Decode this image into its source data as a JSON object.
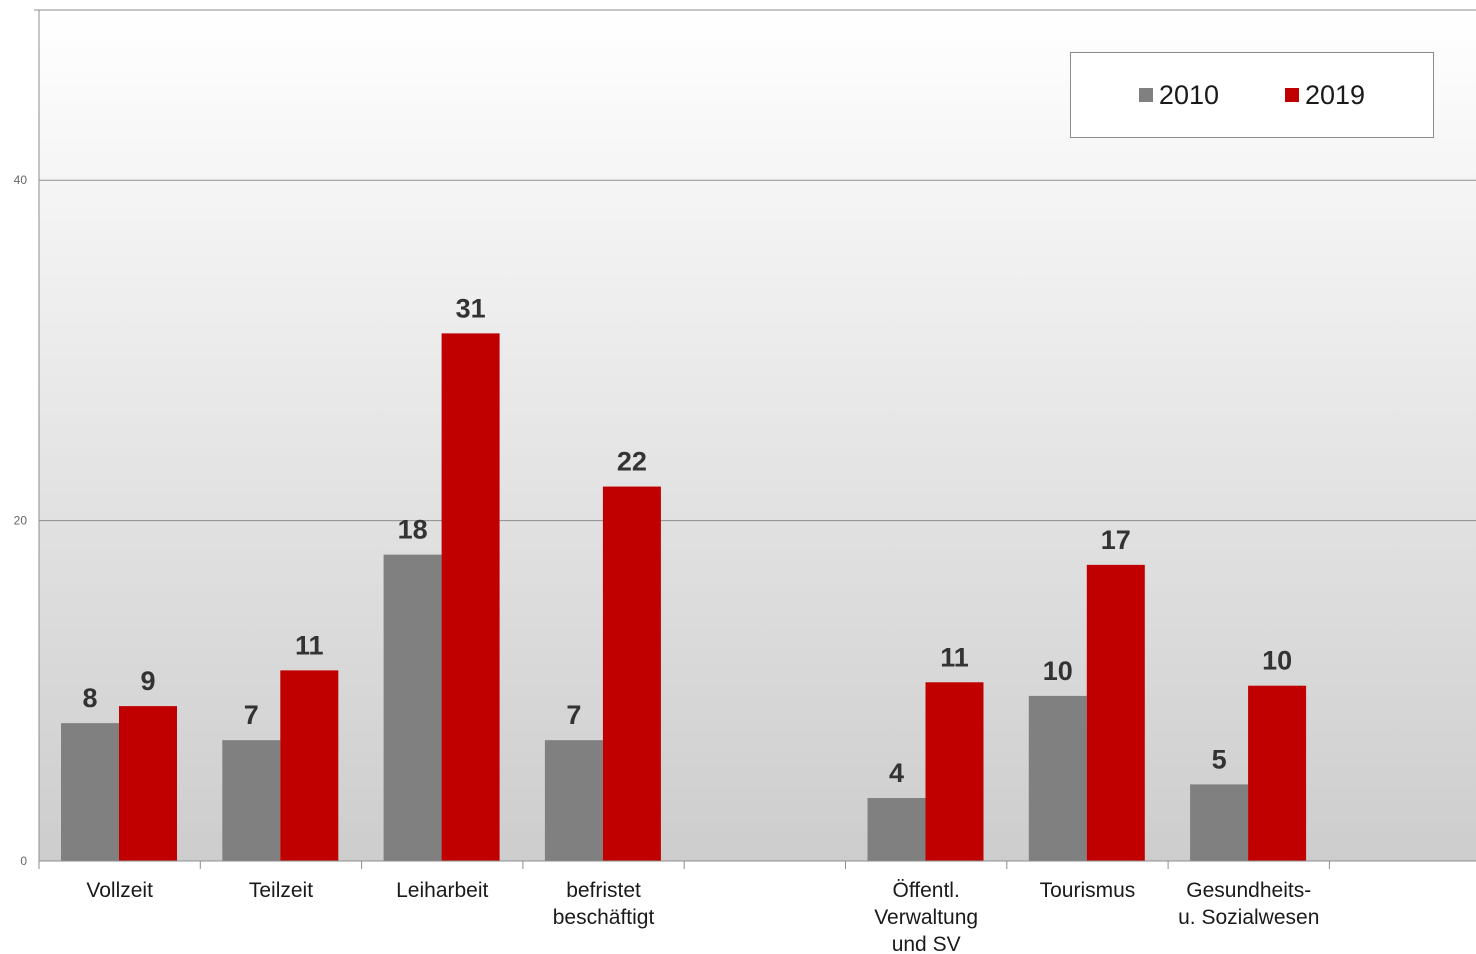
{
  "chart_data": {
    "type": "bar",
    "categories": [
      "Vollzeit",
      "Teilzeit",
      "Leiharbeit",
      "befristet\nbeschäftigt",
      "",
      "Öffentl.\nVerwaltung\nund SV",
      "Tourismus",
      "Gesundheits-\nu. Sozialwesen",
      ""
    ],
    "series": [
      {
        "name": "2010",
        "color": "#808080",
        "values": [
          8,
          7,
          18,
          7,
          null,
          4,
          10,
          5,
          null
        ],
        "plotted_values": [
          8.1,
          7.1,
          18.0,
          7.1,
          null,
          3.7,
          9.7,
          4.5,
          null
        ]
      },
      {
        "name": "2019",
        "color": "#c00000",
        "values": [
          9,
          11,
          31,
          22,
          null,
          11,
          17,
          10,
          null
        ],
        "plotted_values": [
          9.1,
          11.2,
          31.0,
          22.0,
          null,
          10.5,
          17.4,
          10.3,
          null
        ]
      }
    ],
    "yticks": [
      0,
      20,
      40
    ],
    "ylim": [
      0,
      50
    ],
    "grid": true,
    "legend_position": "top-right",
    "title": "",
    "xlabel": "",
    "ylabel": ""
  }
}
